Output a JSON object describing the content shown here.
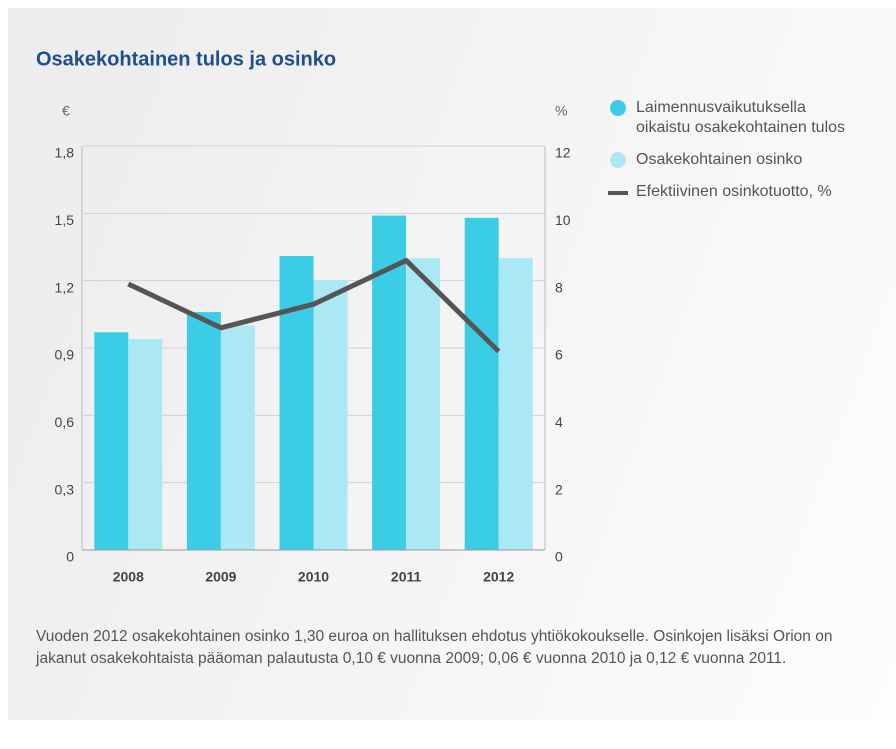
{
  "chart_data": {
    "type": "bar",
    "title": "Osakekohtainen tulos ja osinko",
    "y_label": "€",
    "y2_label": "%",
    "categories": [
      "2008",
      "2009",
      "2010",
      "2011",
      "2012"
    ],
    "series": [
      {
        "name": "Laimennusvaikutuksella oikaistu osakekohtainen tulos",
        "color": "#3ccde6",
        "type": "bar",
        "values": [
          0.97,
          1.06,
          1.31,
          1.49,
          1.48
        ]
      },
      {
        "name": "Osakekohtainen osinko",
        "color": "#a9e8f4",
        "type": "bar",
        "values": [
          0.94,
          1.0,
          1.2,
          1.3,
          1.3
        ]
      },
      {
        "name": "Efektiivinen osinkotuotto, %",
        "color": "#555555",
        "type": "line",
        "axis": "y2",
        "values": [
          7.9,
          6.6,
          7.3,
          8.6,
          5.9
        ]
      }
    ],
    "ylim": [
      0,
      1.8
    ],
    "yticks": [
      0,
      {
        "value": 0.3,
        "label": "0,3"
      },
      {
        "value": 0.6,
        "label": "0,6"
      },
      {
        "value": 0.9,
        "label": "0,9"
      },
      {
        "value": 1.2,
        "label": "1,2"
      },
      {
        "value": 1.5,
        "label": "1,5"
      },
      {
        "value": 1.8,
        "label": "1,8"
      }
    ],
    "y2lim": [
      0,
      12
    ],
    "y2ticks": [
      0,
      2,
      4,
      6,
      8,
      10,
      12
    ],
    "grid": true,
    "legend": "right",
    "footnote": "Vuoden 2012 osakekohtainen osinko 1,30 euroa on hallituksen ehdotus yhtiökokoukselle. Osinkojen lisäksi Orion on jakanut osakekohtaista pääoman palautusta 0,10 € vuonna 2009; 0,06 € vuonna 2010 ja 0,12 € vuonna 2011."
  }
}
